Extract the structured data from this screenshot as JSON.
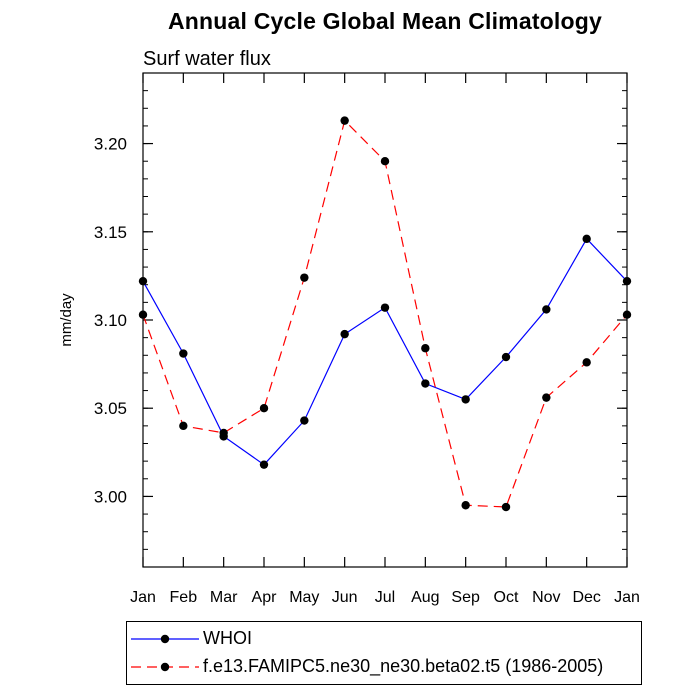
{
  "chart_data": {
    "type": "line",
    "title": "Annual Cycle Global Mean Climatology",
    "subtitle": "Surf water flux",
    "ylabel": "mm/day",
    "xlabel": "",
    "categories": [
      "Jan",
      "Feb",
      "Mar",
      "Apr",
      "May",
      "Jun",
      "Jul",
      "Aug",
      "Sep",
      "Oct",
      "Nov",
      "Dec",
      "Jan"
    ],
    "ylim": [
      2.96,
      3.24
    ],
    "yticks": [
      "3.00",
      "3.05",
      "3.10",
      "3.15",
      "3.20"
    ],
    "ytick_values": [
      3.0,
      3.05,
      3.1,
      3.15,
      3.2
    ],
    "grid": false,
    "legend_position": "bottom",
    "series": [
      {
        "name": "WHOI",
        "color": "#0000ff",
        "dashed": false,
        "marker": "filled-circle",
        "values": [
          3.122,
          3.081,
          3.034,
          3.018,
          3.043,
          3.092,
          3.107,
          3.064,
          3.055,
          3.079,
          3.106,
          3.146,
          3.122
        ]
      },
      {
        "name": "f.e13.FAMIPC5.ne30_ne30.beta02.t5 (1986-2005)",
        "color": "#ff0000",
        "dashed": true,
        "marker": "filled-circle",
        "values": [
          3.103,
          3.04,
          3.036,
          3.05,
          3.124,
          3.213,
          3.19,
          3.084,
          2.995,
          2.994,
          3.056,
          3.076,
          3.103
        ]
      }
    ]
  }
}
